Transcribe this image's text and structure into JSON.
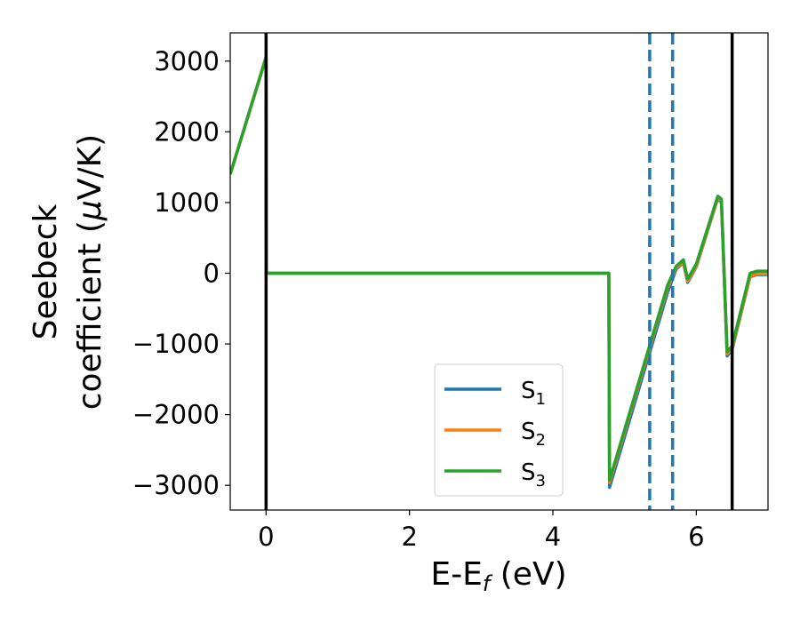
{
  "chart_data": {
    "type": "line",
    "xlabel": {
      "main": "E-E",
      "sub": "f",
      "unit": " (eV)"
    },
    "ylabel": {
      "line1": "Seebeck",
      "line2_prefix": "coefficient  (",
      "mu": "μ",
      "line2_suffix": "V/K)"
    },
    "xlim": [
      -0.5,
      7.0
    ],
    "ylim": [
      -3350,
      3400
    ],
    "x_ticks": [
      0,
      2,
      4,
      6
    ],
    "x_tick_labels": [
      "0",
      "2",
      "4",
      "6"
    ],
    "y_ticks": [
      3000,
      2000,
      1000,
      0,
      -1000,
      -2000,
      -3000
    ],
    "y_tick_labels": [
      "3000",
      "2000",
      "1000",
      "0",
      "−1000",
      "−2000",
      "−3000"
    ],
    "grid": false,
    "legend_position": "bottom-right",
    "vlines_solid": [
      0.0,
      6.5
    ],
    "vlines_dashed": [
      5.35,
      5.67
    ],
    "colors": {
      "s1": "#1f77b4",
      "s2": "#ff7f0e",
      "s3": "#2ca02c",
      "vline_solid": "#000000",
      "vline_dashed": "#1f77b4"
    },
    "series": [
      {
        "name": "S",
        "sub": "1",
        "color": "#1f77b4",
        "points": [
          [
            -0.5,
            1400
          ],
          [
            0.0,
            3050
          ],
          [
            0.005,
            0
          ],
          [
            4.78,
            0
          ],
          [
            4.79,
            -3030
          ],
          [
            5.6,
            -270
          ],
          [
            5.72,
            60
          ],
          [
            5.82,
            150
          ],
          [
            5.88,
            -130
          ],
          [
            6.0,
            90
          ],
          [
            6.3,
            1060
          ],
          [
            6.35,
            1000
          ],
          [
            6.43,
            -1170
          ],
          [
            6.5,
            -1080
          ],
          [
            6.75,
            -50
          ],
          [
            6.85,
            -20
          ],
          [
            7.0,
            -20
          ]
        ]
      },
      {
        "name": "S",
        "sub": "2",
        "color": "#ff7f0e",
        "points": [
          [
            -0.5,
            1400
          ],
          [
            0.0,
            3055
          ],
          [
            0.005,
            0
          ],
          [
            4.78,
            0
          ],
          [
            4.79,
            -2960
          ],
          [
            5.6,
            -200
          ],
          [
            5.72,
            80
          ],
          [
            5.82,
            160
          ],
          [
            5.88,
            -110
          ],
          [
            6.0,
            100
          ],
          [
            6.3,
            1070
          ],
          [
            6.35,
            1020
          ],
          [
            6.43,
            -1140
          ],
          [
            6.5,
            -1060
          ],
          [
            6.75,
            -40
          ],
          [
            6.85,
            -10
          ],
          [
            7.0,
            -10
          ]
        ]
      },
      {
        "name": "S",
        "sub": "3",
        "color": "#2ca02c",
        "points": [
          [
            -0.5,
            1400
          ],
          [
            0.0,
            3060
          ],
          [
            0.005,
            0
          ],
          [
            4.78,
            0
          ],
          [
            4.79,
            -2930
          ],
          [
            5.6,
            -170
          ],
          [
            5.72,
            100
          ],
          [
            5.82,
            190
          ],
          [
            5.88,
            -80
          ],
          [
            6.0,
            130
          ],
          [
            6.3,
            1090
          ],
          [
            6.35,
            1050
          ],
          [
            6.43,
            -1110
          ],
          [
            6.5,
            -1030
          ],
          [
            6.75,
            0
          ],
          [
            6.85,
            30
          ],
          [
            7.0,
            30
          ]
        ]
      }
    ]
  }
}
